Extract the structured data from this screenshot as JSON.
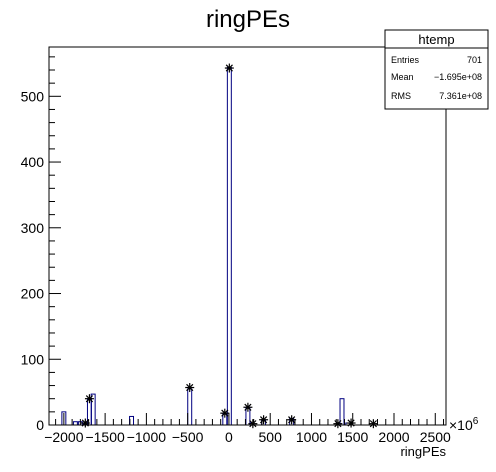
{
  "chart_data": {
    "type": "bar",
    "title": "ringPEs",
    "xlabel": "ringPEs",
    "ylabel": "",
    "x_exponent_label": "×10",
    "x_exponent_power": "6",
    "xlim": [
      -2180,
      2630
    ],
    "ylim": [
      0,
      575
    ],
    "xticks": [
      -2000,
      -1500,
      -1000,
      -500,
      0,
      500,
      1000,
      1500,
      2000,
      2500
    ],
    "xtick_labels": [
      "−2000",
      "−1500",
      "−1000",
      "−500",
      "0",
      "500",
      "1000",
      "1500",
      "2000",
      "2500"
    ],
    "yticks": [
      0,
      100,
      200,
      300,
      400,
      500
    ],
    "ytick_labels": [
      "0",
      "100",
      "200",
      "300",
      "400",
      "500"
    ],
    "bin_width": 48,
    "bins": [
      {
        "x": -2000,
        "value": 20
      },
      {
        "x": -1860,
        "value": 5
      },
      {
        "x": -1800,
        "value": 5
      },
      {
        "x": -1740,
        "value": 3
      },
      {
        "x": -1690,
        "value": 40
      },
      {
        "x": -1645,
        "value": 47
      },
      {
        "x": -1180,
        "value": 13
      },
      {
        "x": -475,
        "value": 55
      },
      {
        "x": -50,
        "value": 18
      },
      {
        "x": 5,
        "value": 544
      },
      {
        "x": 230,
        "value": 27
      },
      {
        "x": 280,
        "value": 3
      },
      {
        "x": 420,
        "value": 8
      },
      {
        "x": 760,
        "value": 10
      },
      {
        "x": 1370,
        "value": 40
      },
      {
        "x": 1440,
        "value": 3
      }
    ],
    "markers": [
      {
        "x": -1740,
        "y": 3
      },
      {
        "x": -1690,
        "y": 40
      },
      {
        "x": -475,
        "y": 57
      },
      {
        "x": -50,
        "y": 18
      },
      {
        "x": 5,
        "y": 543
      },
      {
        "x": 230,
        "y": 27
      },
      {
        "x": 290,
        "y": 2
      },
      {
        "x": 420,
        "y": 8
      },
      {
        "x": 760,
        "y": 8
      },
      {
        "x": 1320,
        "y": 2
      },
      {
        "x": 1480,
        "y": 3
      },
      {
        "x": 1750,
        "y": 2
      }
    ],
    "bar_color": "#000080",
    "grid": false,
    "legend": "none"
  },
  "stats": {
    "title": "htemp",
    "rows": [
      {
        "label": "Entries",
        "value": "701"
      },
      {
        "label": "Mean",
        "value": "−1.695e+08"
      },
      {
        "label": "RMS",
        "value": "7.361e+08"
      }
    ]
  }
}
